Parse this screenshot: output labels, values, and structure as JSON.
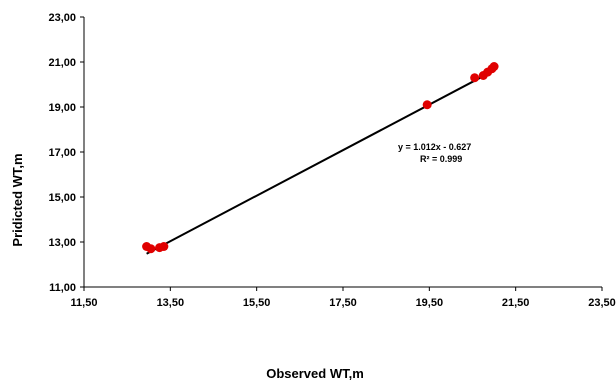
{
  "chart_data": {
    "type": "scatter",
    "title": "",
    "xlabel": "Observed WT,m",
    "ylabel": "Pridicted WT,m",
    "xlim": [
      11.5,
      23.5
    ],
    "ylim": [
      11.0,
      23.0
    ],
    "x_ticks": [
      "11,50",
      "13,50",
      "15,50",
      "17,50",
      "19,50",
      "21,50",
      "23,50"
    ],
    "x_tick_values": [
      11.5,
      13.5,
      15.5,
      17.5,
      19.5,
      21.5,
      23.5
    ],
    "y_ticks": [
      "11,00",
      "13,00",
      "15,00",
      "17,00",
      "19,00",
      "21,00",
      "23,00"
    ],
    "y_tick_values": [
      11.0,
      13.0,
      15.0,
      17.0,
      19.0,
      21.0,
      23.0
    ],
    "grid": false,
    "legend": "none",
    "marker_color": "#e00000",
    "line_color": "#000000",
    "points": [
      {
        "x": 12.95,
        "y": 12.8
      },
      {
        "x": 13.05,
        "y": 12.7
      },
      {
        "x": 13.25,
        "y": 12.75
      },
      {
        "x": 13.35,
        "y": 12.8
      },
      {
        "x": 19.45,
        "y": 19.1
      },
      {
        "x": 20.55,
        "y": 20.3
      },
      {
        "x": 20.75,
        "y": 20.4
      },
      {
        "x": 20.85,
        "y": 20.55
      },
      {
        "x": 20.95,
        "y": 20.7
      },
      {
        "x": 21.0,
        "y": 20.8
      }
    ],
    "trendline": {
      "slope": 1.012,
      "intercept": -0.627,
      "x_range": [
        12.95,
        21.0
      ],
      "equation_label": "y = 1.012x - 0.627",
      "r2_label": "R² = 0.999"
    }
  }
}
